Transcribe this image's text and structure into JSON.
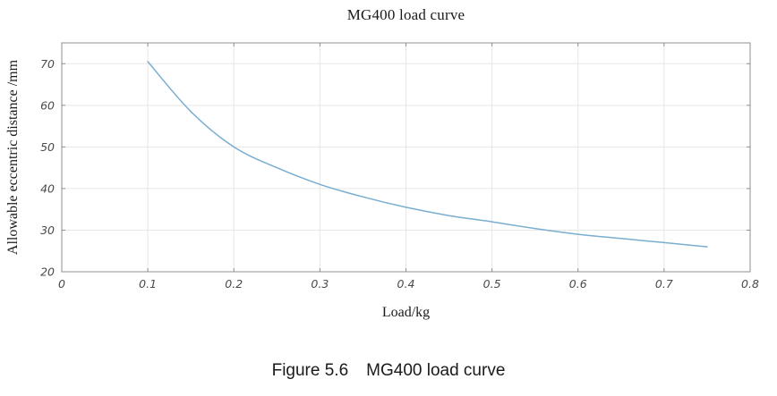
{
  "chart_data": {
    "type": "line",
    "title": "MG400 load curve",
    "xlabel": "Load/kg",
    "ylabel": "Allowable eccentric distance /mm",
    "xlim": [
      0,
      0.8
    ],
    "ylim": [
      20,
      75
    ],
    "x_ticks": [
      0,
      0.1,
      0.2,
      0.3,
      0.4,
      0.5,
      0.6,
      0.7,
      0.8
    ],
    "x_tick_labels": [
      "0",
      "0.1",
      "0.2",
      "0.3",
      "0.4",
      "0.5",
      "0.6",
      "0.7",
      "0.8"
    ],
    "y_ticks": [
      20,
      30,
      40,
      50,
      60,
      70
    ],
    "y_tick_labels": [
      "20",
      "30",
      "40",
      "50",
      "60",
      "70"
    ],
    "grid": true,
    "legend": "none",
    "box": true,
    "series": [
      {
        "name": "allowable-eccentric-distance",
        "color": "#79aed0",
        "x": [
          0.1,
          0.15,
          0.2,
          0.25,
          0.3,
          0.35,
          0.4,
          0.45,
          0.5,
          0.55,
          0.6,
          0.65,
          0.7,
          0.75
        ],
        "y": [
          70.5,
          58.5,
          50.0,
          45.0,
          41.0,
          38.0,
          35.5,
          33.5,
          32.0,
          30.4,
          29.0,
          28.0,
          27.0,
          26.0
        ]
      }
    ],
    "style": {
      "axis_color": "#8f8f8f",
      "grid_color": "#e7e7e7",
      "tick_label_color": "#4a4a4a",
      "label_color": "#1a1a1a"
    }
  },
  "caption": {
    "label": "Figure 5.6",
    "text": "MG400 load curve"
  }
}
